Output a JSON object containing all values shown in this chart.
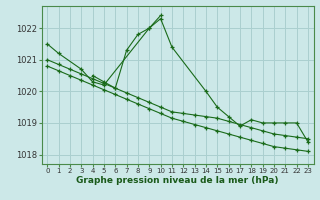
{
  "bg_color": "#cce8e8",
  "grid_color": "#aacfcf",
  "line_color": "#1a6b1a",
  "marker_color": "#1a6b1a",
  "xlabel": "Graphe pression niveau de la mer (hPa)",
  "ylim": [
    1017.7,
    1022.7
  ],
  "xlim": [
    -0.5,
    23.5
  ],
  "yticks": [
    1018,
    1019,
    1020,
    1021,
    1022
  ],
  "xticks": [
    0,
    1,
    2,
    3,
    4,
    5,
    6,
    7,
    8,
    9,
    10,
    11,
    12,
    13,
    14,
    15,
    16,
    17,
    18,
    19,
    20,
    21,
    22,
    23
  ],
  "series": [
    {
      "x": [
        0,
        1,
        3,
        4,
        5,
        9,
        10,
        11,
        14,
        15,
        16,
        17,
        18,
        19,
        20,
        21,
        22,
        23
      ],
      "y": [
        1021.5,
        1021.2,
        1020.7,
        1020.3,
        1020.2,
        1022.0,
        1022.3,
        1021.4,
        1020.0,
        1019.5,
        1019.2,
        1018.9,
        1019.1,
        1019.0,
        1019.0,
        1019.0,
        1019.0,
        1018.4
      ]
    },
    {
      "x": [
        4,
        5,
        6,
        7,
        8,
        9,
        10
      ],
      "y": [
        1020.5,
        1020.3,
        1020.1,
        1021.3,
        1021.8,
        1022.0,
        1022.4
      ]
    },
    {
      "x": [
        0,
        1,
        2,
        3,
        4,
        5,
        6,
        7,
        8,
        9,
        10,
        11,
        12,
        13,
        14,
        15,
        16,
        17,
        18,
        19,
        20,
        21,
        22,
        23
      ],
      "y": [
        1021.0,
        1020.85,
        1020.7,
        1020.55,
        1020.4,
        1020.25,
        1020.1,
        1019.95,
        1019.8,
        1019.65,
        1019.5,
        1019.35,
        1019.3,
        1019.25,
        1019.2,
        1019.15,
        1019.05,
        1018.95,
        1018.85,
        1018.75,
        1018.65,
        1018.6,
        1018.55,
        1018.5
      ]
    },
    {
      "x": [
        0,
        1,
        2,
        3,
        4,
        5,
        6,
        7,
        8,
        9,
        10,
        11,
        12,
        13,
        14,
        15,
        16,
        17,
        18,
        19,
        20,
        21,
        22,
        23
      ],
      "y": [
        1020.8,
        1020.65,
        1020.5,
        1020.35,
        1020.2,
        1020.05,
        1019.9,
        1019.75,
        1019.6,
        1019.45,
        1019.3,
        1019.15,
        1019.05,
        1018.95,
        1018.85,
        1018.75,
        1018.65,
        1018.55,
        1018.45,
        1018.35,
        1018.25,
        1018.2,
        1018.15,
        1018.1
      ]
    }
  ]
}
